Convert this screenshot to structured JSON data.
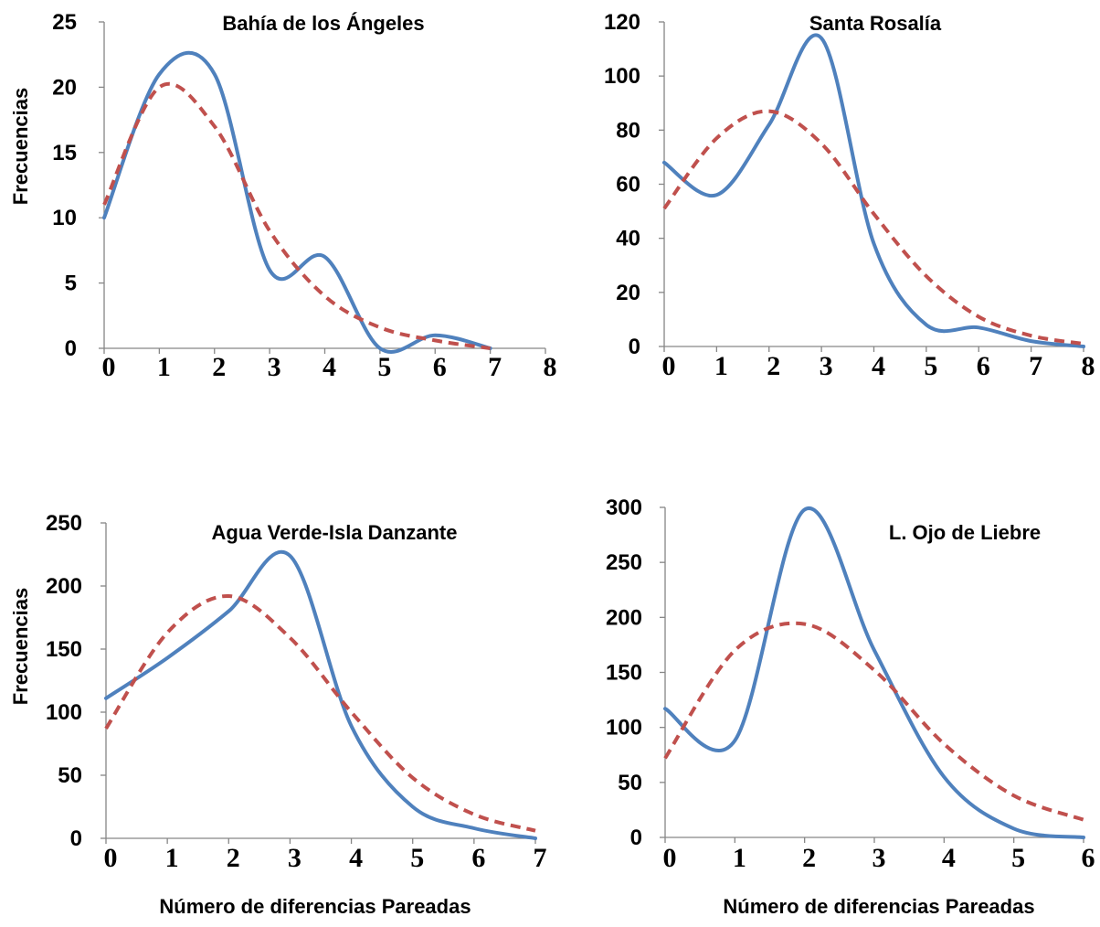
{
  "colors": {
    "observed": "#4F81BD",
    "expected": "#C0504D"
  },
  "chart_data": [
    {
      "type": "line",
      "title": "Bahía de los Ángeles",
      "ylabel": "Frecuencias",
      "xlabel": "",
      "xlim": [
        0,
        8
      ],
      "ylim": [
        0,
        25
      ],
      "xticks": [
        0,
        1,
        2,
        3,
        4,
        5,
        6,
        7,
        8
      ],
      "yticks": [
        0,
        5,
        10,
        15,
        20,
        25
      ],
      "series": [
        {
          "style": "solid",
          "color": "#4F81BD",
          "x": [
            0,
            1,
            2,
            3,
            4,
            5,
            6,
            7
          ],
          "y": [
            10,
            21,
            21,
            6,
            7,
            0,
            1,
            0
          ]
        },
        {
          "style": "dashed",
          "color": "#C0504D",
          "x": [
            0,
            1,
            2,
            3,
            4,
            5,
            6,
            7
          ],
          "y": [
            11,
            20,
            17,
            9,
            4,
            1.6,
            0.6,
            0
          ]
        }
      ]
    },
    {
      "type": "line",
      "title": "Santa Rosalía",
      "ylabel": "",
      "xlabel": "",
      "xlim": [
        0,
        8
      ],
      "ylim": [
        0,
        120
      ],
      "xticks": [
        0,
        1,
        2,
        3,
        4,
        5,
        6,
        7,
        8
      ],
      "yticks": [
        0,
        20,
        40,
        60,
        80,
        100,
        120
      ],
      "series": [
        {
          "style": "solid",
          "color": "#4F81BD",
          "x": [
            0,
            1,
            2,
            3,
            4,
            5,
            6,
            7,
            8
          ],
          "y": [
            68,
            56,
            82,
            114,
            38,
            8,
            7,
            2,
            0
          ]
        },
        {
          "style": "dashed",
          "color": "#C0504D",
          "x": [
            0,
            1,
            2,
            3,
            4,
            5,
            6,
            7,
            8
          ],
          "y": [
            51,
            77,
            87,
            75,
            49,
            26,
            11,
            4,
            1
          ]
        }
      ]
    },
    {
      "type": "line",
      "title": "Agua Verde-Isla Danzante",
      "ylabel": "Frecuencias",
      "xlabel": "Número de diferencias Pareadas",
      "xlim": [
        0,
        7
      ],
      "ylim": [
        0,
        250
      ],
      "xticks": [
        0,
        1,
        2,
        3,
        4,
        5,
        6,
        7
      ],
      "yticks": [
        0,
        50,
        100,
        150,
        200,
        250
      ],
      "series": [
        {
          "style": "solid",
          "color": "#4F81BD",
          "x": [
            0,
            1,
            2,
            3,
            4,
            5,
            6,
            7
          ],
          "y": [
            111,
            143,
            180,
            224,
            89,
            25,
            8,
            0
          ]
        },
        {
          "style": "dashed",
          "color": "#C0504D",
          "x": [
            0,
            1,
            2,
            3,
            4,
            5,
            6,
            7
          ],
          "y": [
            87,
            163,
            192,
            159,
            100,
            48,
            19,
            6
          ]
        }
      ]
    },
    {
      "type": "line",
      "title": "L. Ojo de Liebre",
      "ylabel": "",
      "xlabel": "Número de diferencias Pareadas",
      "xlim": [
        0,
        6
      ],
      "ylim": [
        0,
        300
      ],
      "xticks": [
        0,
        1,
        2,
        3,
        4,
        5,
        6
      ],
      "yticks": [
        0,
        50,
        100,
        150,
        200,
        250,
        300
      ],
      "series": [
        {
          "style": "solid",
          "color": "#4F81BD",
          "x": [
            0,
            1,
            2,
            3,
            4,
            5,
            6
          ],
          "y": [
            117,
            88,
            298,
            170,
            55,
            8,
            0
          ]
        },
        {
          "style": "dashed",
          "color": "#C0504D",
          "x": [
            0,
            1,
            2,
            3,
            4,
            5,
            6
          ],
          "y": [
            72,
            170,
            194,
            152,
            85,
            38,
            16
          ]
        }
      ]
    }
  ]
}
